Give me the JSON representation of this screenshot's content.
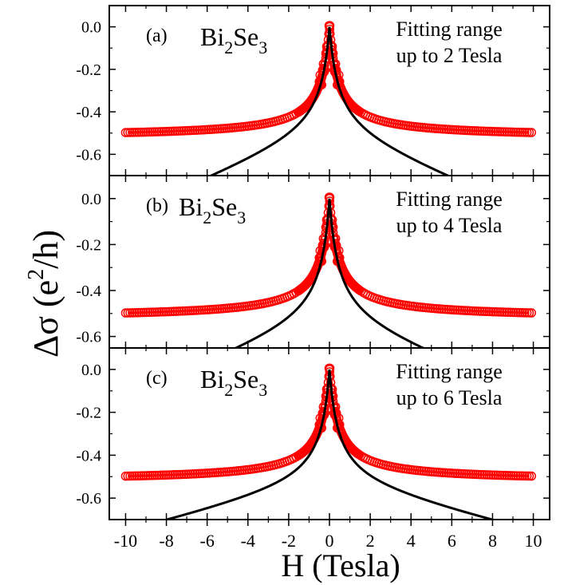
{
  "chart_data": {
    "type": "scatter",
    "xlabel": "H (Tesla)",
    "ylabel": {
      "main": "Δσ (e",
      "sup": "2",
      "tail": "/h)"
    },
    "x_ticks": [
      -10,
      -8,
      -6,
      -4,
      -2,
      0,
      2,
      4,
      6,
      8,
      10
    ],
    "xlim": [
      -10.8,
      10.8
    ],
    "colors": {
      "data": "#ff0000",
      "fit": "#000000",
      "axis": "#000000"
    },
    "panels": [
      {
        "label": "(a)",
        "sample": {
          "base": "Bi",
          "sub1": "2",
          "mid": "Se",
          "sub2": "3"
        },
        "annotation": [
          "Fitting range",
          "up to 2 Tesla"
        ],
        "ylim": [
          -0.7,
          0.1
        ],
        "y_ticks": [
          "0.0",
          "-0.2",
          "-0.4",
          "-0.6"
        ],
        "series": [
          {
            "kind": "measured",
            "a": 0.52,
            "b": 5.0,
            "p": 1.5,
            "marker": "open-circle"
          },
          {
            "kind": "fit",
            "a": 0.1,
            "b": 0.52,
            "c": 0.0375,
            "marker": "line"
          }
        ]
      },
      {
        "label": "(b)",
        "sample": {
          "base": "Bi",
          "sub1": "2",
          "mid": "Se",
          "sub2": "3"
        },
        "annotation": [
          "Fitting range",
          "up to 4 Tesla"
        ],
        "ylim": [
          -0.65,
          0.1
        ],
        "y_ticks": [
          "0.0",
          "-0.2",
          "-0.4",
          "-0.6"
        ],
        "series": [
          {
            "kind": "measured",
            "a": 0.52,
            "b": 5.0,
            "p": 1.5,
            "marker": "open-circle"
          },
          {
            "kind": "fit",
            "a": 0.1,
            "b": 0.55,
            "c": 0.0325,
            "marker": "line"
          }
        ]
      },
      {
        "label": "(c)",
        "sample": {
          "base": "Bi",
          "sub1": "2",
          "mid": "Se",
          "sub2": "3"
        },
        "annotation": [
          "Fitting range",
          "up to 6 Tesla"
        ],
        "ylim": [
          -0.7,
          0.1
        ],
        "y_ticks": [
          "0.0",
          "-0.2",
          "-0.4",
          "-0.6"
        ],
        "series": [
          {
            "kind": "measured",
            "a": 0.52,
            "b": 5.0,
            "p": 1.5,
            "marker": "open-circle"
          },
          {
            "kind": "fit",
            "a": 0.1,
            "b": 0.55,
            "c": 0.0225,
            "marker": "line"
          }
        ]
      }
    ]
  }
}
